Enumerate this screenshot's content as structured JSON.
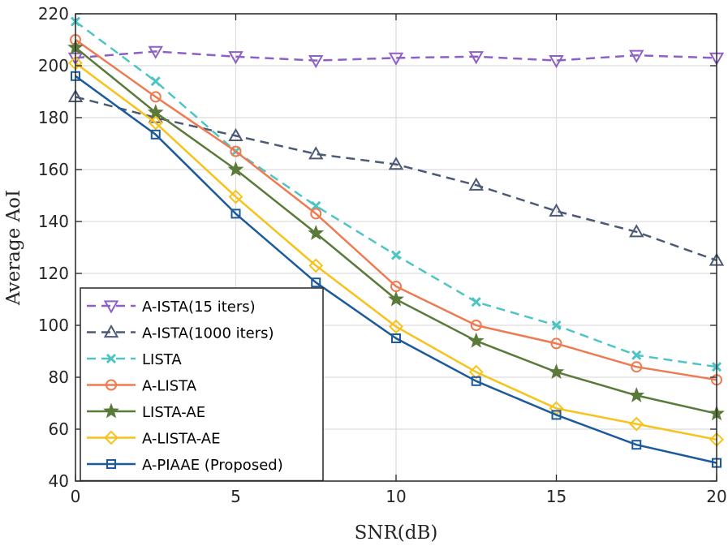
{
  "chart_data": {
    "type": "line",
    "xlabel": "SNR(dB)",
    "ylabel": "Average AoI",
    "xlim": [
      0,
      20
    ],
    "ylim": [
      40,
      220
    ],
    "xticks": [
      0,
      5,
      10,
      15,
      20
    ],
    "yticks": [
      40,
      60,
      80,
      100,
      120,
      140,
      160,
      180,
      200,
      220
    ],
    "grid": true,
    "legend_position": "bottom-left",
    "x": [
      0,
      2.5,
      5,
      7.5,
      10,
      12.5,
      15,
      17.5,
      20
    ],
    "series": [
      {
        "name": "A-ISTA(15 iters)",
        "color": "#8e5fc7",
        "dash": "dashed",
        "marker": "triangle-down",
        "values": [
          203,
          205.5,
          203.5,
          202,
          203,
          203.5,
          202,
          204,
          203
        ]
      },
      {
        "name": "A-ISTA(1000 iters)",
        "color": "#4d5a75",
        "dash": "dashed",
        "marker": "triangle-up",
        "values": [
          188,
          180,
          173,
          166,
          162,
          154,
          144,
          136,
          125
        ]
      },
      {
        "name": "LISTA",
        "color": "#4fc4c4",
        "dash": "dashed",
        "marker": "x",
        "values": [
          217,
          194,
          167,
          146,
          127,
          109,
          100,
          88.5,
          84
        ]
      },
      {
        "name": "A-LISTA",
        "color": "#ee7a52",
        "dash": "solid",
        "marker": "circle",
        "values": [
          210,
          188,
          167,
          143,
          115,
          100,
          93,
          84,
          79
        ]
      },
      {
        "name": "LISTA-AE",
        "color": "#5a7a3a",
        "dash": "solid",
        "marker": "star",
        "values": [
          207,
          182,
          160,
          135.5,
          110,
          94,
          82,
          73,
          66
        ]
      },
      {
        "name": "A-LISTA-AE",
        "color": "#f6c21b",
        "dash": "solid",
        "marker": "diamond",
        "values": [
          201,
          178,
          149.5,
          123,
          99.5,
          82,
          68,
          62,
          56
        ]
      },
      {
        "name": "A-PIAAE (Proposed)",
        "color": "#1b5a9c",
        "dash": "solid",
        "marker": "square",
        "values": [
          196,
          173.5,
          143,
          116.5,
          95,
          78.5,
          65.5,
          54,
          47
        ]
      }
    ]
  }
}
